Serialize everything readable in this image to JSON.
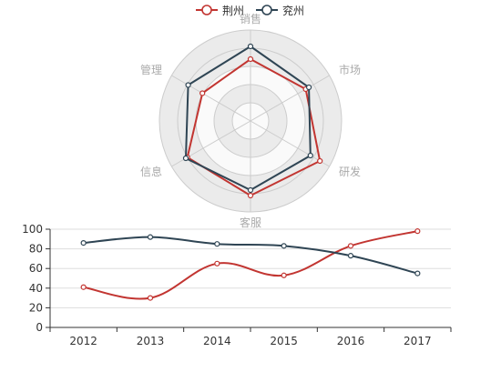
{
  "legend": {
    "items": [
      {
        "name": "荆州",
        "color": "#c23531"
      },
      {
        "name": "兖州",
        "color": "#2f4554"
      }
    ]
  },
  "chart_data": [
    {
      "type": "radar",
      "indicators": [
        "销售",
        "市场",
        "研发",
        "客服",
        "信息",
        "管理"
      ],
      "max": 100,
      "series": [
        {
          "name": "荆州",
          "color": "#c23531",
          "values": [
            68,
            70,
            88,
            82,
            80,
            61
          ]
        },
        {
          "name": "兖州",
          "color": "#2f4554",
          "values": [
            82,
            74,
            76,
            76,
            82,
            79
          ]
        }
      ],
      "split_areas": [
        "#fafafa",
        "#ebebeb",
        "#fafafa",
        "#ebebeb",
        "#ebebeb"
      ]
    },
    {
      "type": "line",
      "categories": [
        "2012",
        "2013",
        "2014",
        "2015",
        "2016",
        "2017"
      ],
      "ylim": [
        0,
        100
      ],
      "yticks": [
        0,
        20,
        40,
        60,
        80,
        100
      ],
      "smooth": true,
      "grid": true,
      "series": [
        {
          "name": "荆州",
          "color": "#c23531",
          "values": [
            41,
            30,
            65,
            53,
            83,
            98
          ]
        },
        {
          "name": "兖州",
          "color": "#2f4554",
          "values": [
            86,
            92,
            85,
            83,
            73,
            55
          ]
        }
      ]
    }
  ]
}
